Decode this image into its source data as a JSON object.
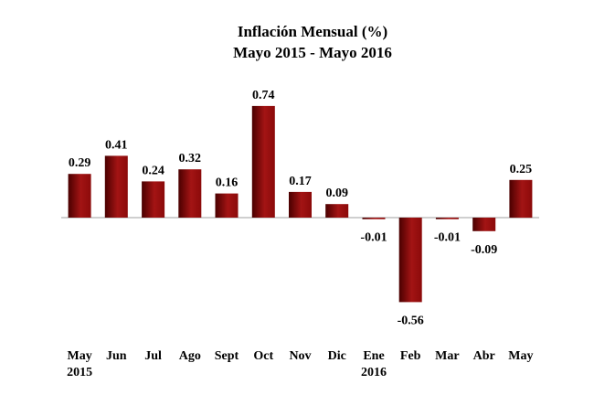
{
  "chart_data": {
    "type": "bar",
    "title": "Inflación Mensual (%)",
    "subtitle": "Mayo 2015 - Mayo 2016",
    "xlabel": "",
    "ylabel": "",
    "grid": false,
    "legend": "none",
    "categories": [
      {
        "label": "May",
        "sublabel": "2015"
      },
      {
        "label": "Jun",
        "sublabel": ""
      },
      {
        "label": "Jul",
        "sublabel": ""
      },
      {
        "label": "Ago",
        "sublabel": ""
      },
      {
        "label": "Sept",
        "sublabel": ""
      },
      {
        "label": "Oct",
        "sublabel": ""
      },
      {
        "label": "Nov",
        "sublabel": ""
      },
      {
        "label": "Dic",
        "sublabel": ""
      },
      {
        "label": "Ene",
        "sublabel": "2016"
      },
      {
        "label": "Feb",
        "sublabel": ""
      },
      {
        "label": "Mar",
        "sublabel": ""
      },
      {
        "label": "Abr",
        "sublabel": ""
      },
      {
        "label": "May",
        "sublabel": ""
      }
    ],
    "values": [
      0.29,
      0.41,
      0.24,
      0.32,
      0.16,
      0.74,
      0.17,
      0.09,
      -0.01,
      -0.56,
      -0.01,
      -0.09,
      0.25
    ],
    "value_labels": [
      "0.29",
      "0.41",
      "0.24",
      "0.32",
      "0.16",
      "0.74",
      "0.17",
      "0.09",
      "-0.01",
      "-0.56",
      "-0.01",
      "-0.09",
      "0.25"
    ],
    "ylim": [
      -0.56,
      0.74
    ],
    "colors": {
      "bar_dark": "#4a0000",
      "bar_mid": "#8b0a0a",
      "bar_light": "#a31414",
      "axis": "#bfbfbf"
    }
  }
}
